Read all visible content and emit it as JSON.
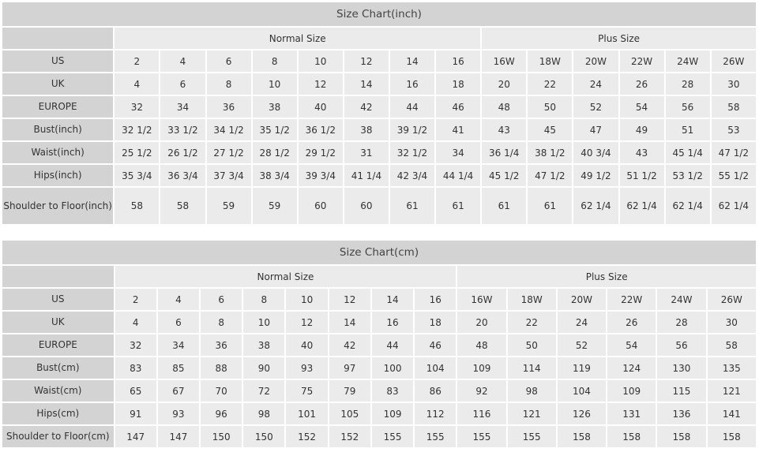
{
  "charts": [
    {
      "title": "Size Chart(inch)",
      "groups": [
        "Normal Size",
        "Plus Size"
      ],
      "rows": [
        {
          "label": "US",
          "values": [
            "2",
            "4",
            "6",
            "8",
            "10",
            "12",
            "14",
            "16",
            "16W",
            "18W",
            "20W",
            "22W",
            "24W",
            "26W"
          ]
        },
        {
          "label": "UK",
          "values": [
            "4",
            "6",
            "8",
            "10",
            "12",
            "14",
            "16",
            "18",
            "20",
            "22",
            "24",
            "26",
            "28",
            "30"
          ]
        },
        {
          "label": "EUROPE",
          "values": [
            "32",
            "34",
            "36",
            "38",
            "40",
            "42",
            "44",
            "46",
            "48",
            "50",
            "52",
            "54",
            "56",
            "58"
          ]
        },
        {
          "label": "Bust(inch)",
          "values": [
            "32 1/2",
            "33 1/2",
            "34 1/2",
            "35 1/2",
            "36 1/2",
            "38",
            "39 1/2",
            "41",
            "43",
            "45",
            "47",
            "49",
            "51",
            "53"
          ]
        },
        {
          "label": "Waist(inch)",
          "values": [
            "25 1/2",
            "26 1/2",
            "27 1/2",
            "28 1/2",
            "29 1/2",
            "31",
            "32 1/2",
            "34",
            "36 1/4",
            "38 1/2",
            "40 3/4",
            "43",
            "45 1/4",
            "47 1/2"
          ]
        },
        {
          "label": "Hips(inch)",
          "values": [
            "35 3/4",
            "36 3/4",
            "37 3/4",
            "38 3/4",
            "39 3/4",
            "41 1/4",
            "42 3/4",
            "44 1/4",
            "45 1/2",
            "47 1/2",
            "49 1/2",
            "51 1/2",
            "53 1/2",
            "55 1/2"
          ]
        },
        {
          "label": "Shoulder to Floor(inch)",
          "values": [
            "58",
            "58",
            "59",
            "59",
            "60",
            "60",
            "61",
            "61",
            "61",
            "61",
            "62 1/4",
            "62 1/4",
            "62 1/4",
            "62 1/4"
          ]
        }
      ]
    },
    {
      "title": "Size Chart(cm)",
      "groups": [
        "Normal Size",
        "Plus Size"
      ],
      "rows": [
        {
          "label": "US",
          "values": [
            "2",
            "4",
            "6",
            "8",
            "10",
            "12",
            "14",
            "16",
            "16W",
            "18W",
            "20W",
            "22W",
            "24W",
            "26W"
          ]
        },
        {
          "label": "UK",
          "values": [
            "4",
            "6",
            "8",
            "10",
            "12",
            "14",
            "16",
            "18",
            "20",
            "22",
            "24",
            "26",
            "28",
            "30"
          ]
        },
        {
          "label": "EUROPE",
          "values": [
            "32",
            "34",
            "36",
            "38",
            "40",
            "42",
            "44",
            "46",
            "48",
            "50",
            "52",
            "54",
            "56",
            "58"
          ]
        },
        {
          "label": "Bust(cm)",
          "values": [
            "83",
            "85",
            "88",
            "90",
            "93",
            "97",
            "100",
            "104",
            "109",
            "114",
            "119",
            "124",
            "130",
            "135"
          ]
        },
        {
          "label": "Waist(cm)",
          "values": [
            "65",
            "67",
            "70",
            "72",
            "75",
            "79",
            "83",
            "86",
            "92",
            "98",
            "104",
            "109",
            "115",
            "121"
          ]
        },
        {
          "label": "Hips(cm)",
          "values": [
            "91",
            "93",
            "96",
            "98",
            "101",
            "105",
            "109",
            "112",
            "116",
            "121",
            "126",
            "131",
            "136",
            "141"
          ]
        },
        {
          "label": "Shoulder to Floor(cm)",
          "values": [
            "147",
            "147",
            "150",
            "150",
            "152",
            "152",
            "155",
            "155",
            "155",
            "155",
            "158",
            "158",
            "158",
            "158"
          ]
        }
      ]
    }
  ]
}
